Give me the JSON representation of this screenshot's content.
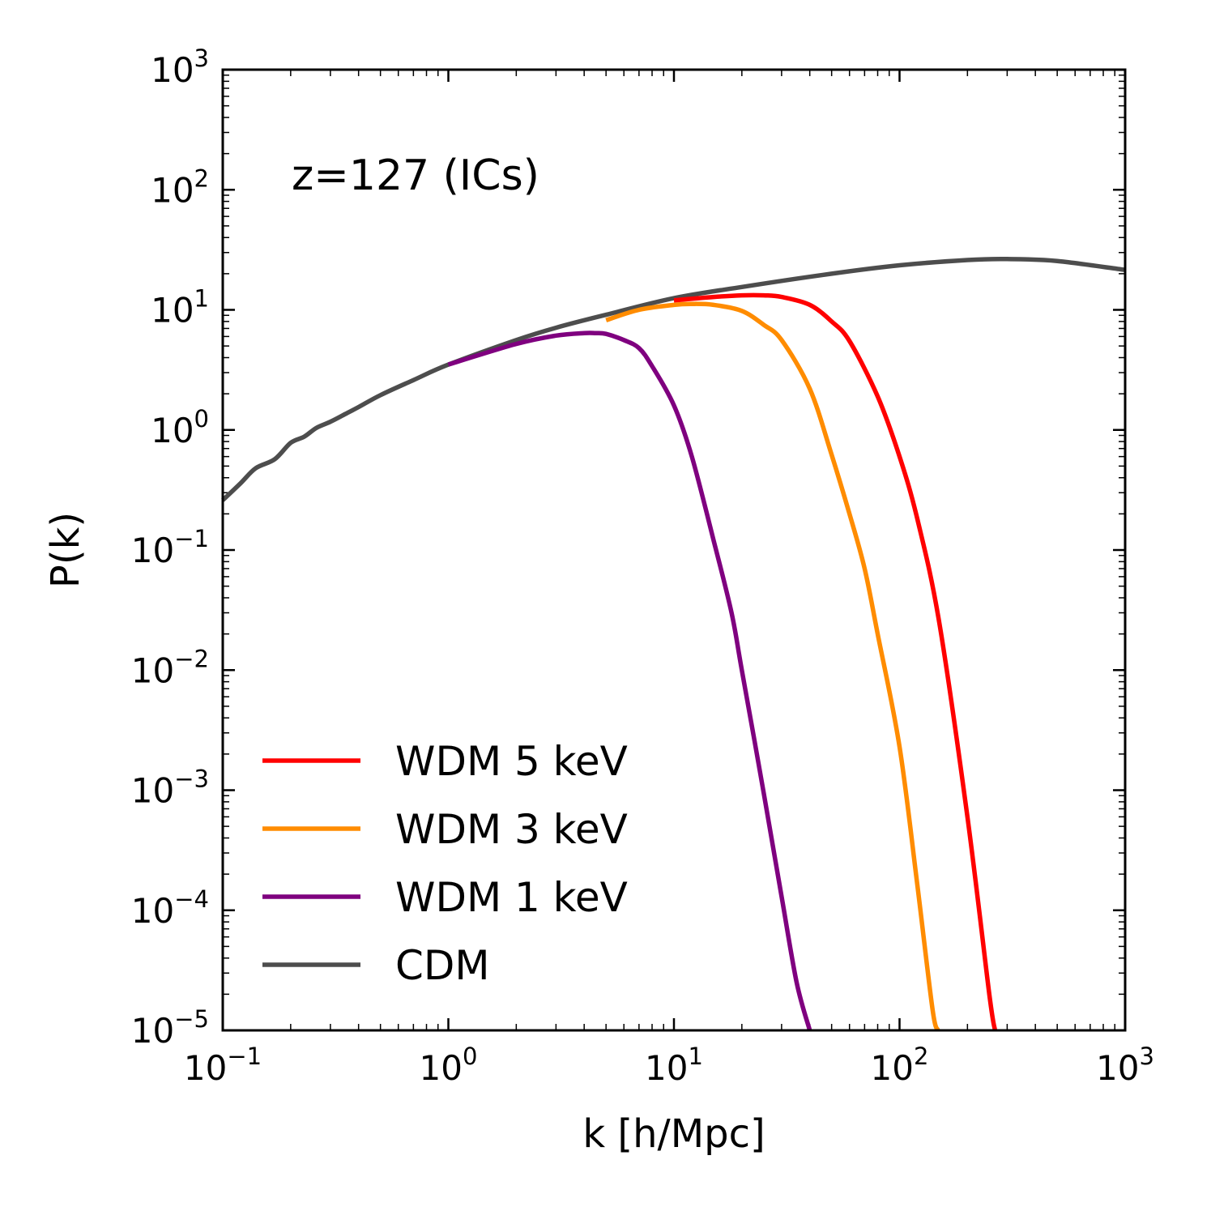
{
  "chart_data": {
    "type": "line",
    "xlabel": "k [h/Mpc]",
    "ylabel": "P(k)",
    "annotation": "z=127 (ICs)",
    "xscale": "log",
    "yscale": "log",
    "xlim": [
      0.1,
      1000
    ],
    "ylim": [
      1e-05,
      1000
    ],
    "x_ticks": [
      {
        "base": "10",
        "exp": "−1"
      },
      {
        "base": "10",
        "exp": "0"
      },
      {
        "base": "10",
        "exp": "1"
      },
      {
        "base": "10",
        "exp": "2"
      },
      {
        "base": "10",
        "exp": "3"
      }
    ],
    "y_ticks": [
      {
        "base": "10",
        "exp": "−5"
      },
      {
        "base": "10",
        "exp": "−4"
      },
      {
        "base": "10",
        "exp": "−3"
      },
      {
        "base": "10",
        "exp": "−2"
      },
      {
        "base": "10",
        "exp": "−1"
      },
      {
        "base": "10",
        "exp": "0"
      },
      {
        "base": "10",
        "exp": "1"
      },
      {
        "base": "10",
        "exp": "2"
      },
      {
        "base": "10",
        "exp": "3"
      }
    ],
    "grid": false,
    "legend_position": "lower-left",
    "series": [
      {
        "name": "WDM 5 keV",
        "color": "#ff0000",
        "x": [
          10,
          15,
          20,
          25,
          30,
          40,
          50,
          60,
          80,
          100,
          120,
          150,
          200,
          250,
          265
        ],
        "y": [
          12,
          12.8,
          13.2,
          13.2,
          12.8,
          11,
          8,
          5.5,
          1.9,
          0.6,
          0.18,
          0.025,
          0.0006,
          2e-05,
          1e-05
        ]
      },
      {
        "name": "WDM 3 keV",
        "color": "#ff8c00",
        "x": [
          5,
          7,
          10,
          12,
          15,
          20,
          25,
          30,
          40,
          50,
          60,
          70,
          80,
          100,
          120,
          140,
          148
        ],
        "y": [
          8.2,
          10,
          11,
          11.2,
          11,
          9.8,
          7.5,
          5.6,
          2.2,
          0.62,
          0.2,
          0.07,
          0.02,
          0.0023,
          0.00016,
          1.5e-05,
          1e-05
        ]
      },
      {
        "name": "WDM 1 keV",
        "color": "#7f007f",
        "x": [
          1,
          2,
          3,
          4,
          4.5,
          5,
          6,
          7,
          8,
          10,
          12,
          15,
          18,
          20,
          25,
          30,
          35,
          40
        ],
        "y": [
          3.5,
          5.2,
          6.1,
          6.4,
          6.4,
          6.3,
          5.6,
          4.8,
          3.4,
          1.6,
          0.6,
          0.12,
          0.03,
          0.01,
          0.00095,
          0.00013,
          2.5e-05,
          1e-05
        ]
      },
      {
        "name": "CDM",
        "color": "#4d4d4d",
        "x": [
          0.1,
          0.12,
          0.14,
          0.17,
          0.2,
          0.23,
          0.26,
          0.3,
          0.35,
          0.4,
          0.5,
          0.7,
          1,
          2,
          3,
          5,
          10,
          20,
          50,
          100,
          200,
          300,
          500,
          1000
        ],
        "y": [
          0.26,
          0.36,
          0.48,
          0.57,
          0.78,
          0.88,
          1.04,
          1.17,
          1.36,
          1.55,
          1.95,
          2.6,
          3.5,
          5.6,
          7.1,
          9.1,
          12.5,
          15.5,
          20,
          23.5,
          26,
          26.5,
          25.5,
          21.5
        ]
      }
    ]
  }
}
